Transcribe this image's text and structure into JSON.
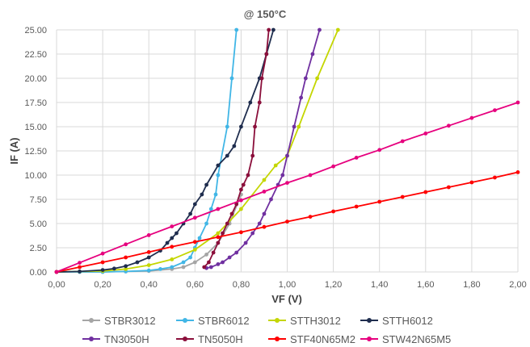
{
  "chart_data": {
    "type": "line",
    "title": "@ 150°C",
    "xlabel": "VF (V)",
    "ylabel": "IF (A)",
    "xlim": [
      0,
      2.0
    ],
    "ylim": [
      0,
      25
    ],
    "x_ticks": [
      "0,00",
      "0,20",
      "0,40",
      "0,60",
      "0,80",
      "1,00",
      "1,20",
      "1,40",
      "1,60",
      "1,80",
      "2,00"
    ],
    "y_ticks": [
      "0.00",
      "2.50",
      "5.00",
      "7.50",
      "10.00",
      "12.50",
      "15.00",
      "17.50",
      "20.00",
      "22.50",
      "25.00"
    ],
    "grid": true,
    "legend_position": "bottom",
    "series": [
      {
        "name": "STBR3012",
        "color": "#a5a5a5",
        "points": [
          [
            0.1,
            0
          ],
          [
            0.2,
            0
          ],
          [
            0.3,
            0.05
          ],
          [
            0.4,
            0.1
          ],
          [
            0.5,
            0.3
          ],
          [
            0.55,
            0.5
          ],
          [
            0.6,
            1.0
          ],
          [
            0.65,
            1.8
          ],
          [
            0.7,
            3.0
          ],
          [
            0.75,
            5.0
          ],
          [
            0.8,
            8.0
          ]
        ]
      },
      {
        "name": "STBR6012",
        "color": "#41b6e6",
        "points": [
          [
            0.0,
            0
          ],
          [
            0.1,
            0
          ],
          [
            0.2,
            0
          ],
          [
            0.3,
            0.05
          ],
          [
            0.4,
            0.15
          ],
          [
            0.45,
            0.3
          ],
          [
            0.5,
            0.5
          ],
          [
            0.55,
            1.0
          ],
          [
            0.58,
            1.5
          ],
          [
            0.6,
            2.5
          ],
          [
            0.62,
            3.5
          ],
          [
            0.65,
            5.0
          ],
          [
            0.67,
            6.5
          ],
          [
            0.69,
            8.0
          ],
          [
            0.7,
            10.0
          ],
          [
            0.74,
            15.0
          ],
          [
            0.76,
            20.0
          ],
          [
            0.78,
            25.0
          ]
        ]
      },
      {
        "name": "STTH3012",
        "color": "#c4d600",
        "points": [
          [
            0.0,
            0
          ],
          [
            0.1,
            0.05
          ],
          [
            0.2,
            0.1
          ],
          [
            0.3,
            0.3
          ],
          [
            0.4,
            0.7
          ],
          [
            0.5,
            1.3
          ],
          [
            0.6,
            2.3
          ],
          [
            0.7,
            4.0
          ],
          [
            0.8,
            6.5
          ],
          [
            0.9,
            9.5
          ],
          [
            0.95,
            11.0
          ],
          [
            1.0,
            12.0
          ],
          [
            1.05,
            15.0
          ],
          [
            1.13,
            20.0
          ],
          [
            1.22,
            25.0
          ]
        ]
      },
      {
        "name": "STTH6012",
        "color": "#1f2d4e",
        "points": [
          [
            0.0,
            0
          ],
          [
            0.1,
            0.05
          ],
          [
            0.2,
            0.2
          ],
          [
            0.25,
            0.35
          ],
          [
            0.3,
            0.6
          ],
          [
            0.35,
            1.0
          ],
          [
            0.4,
            1.5
          ],
          [
            0.45,
            2.2
          ],
          [
            0.48,
            3.0
          ],
          [
            0.5,
            3.5
          ],
          [
            0.52,
            4.0
          ],
          [
            0.55,
            5.0
          ],
          [
            0.58,
            6.0
          ],
          [
            0.6,
            7.0
          ],
          [
            0.63,
            8.0
          ],
          [
            0.65,
            9.0
          ],
          [
            0.7,
            11.0
          ],
          [
            0.74,
            12.0
          ],
          [
            0.77,
            13.0
          ],
          [
            0.8,
            15.0
          ],
          [
            0.84,
            17.5
          ],
          [
            0.88,
            20.0
          ],
          [
            0.91,
            22.5
          ],
          [
            0.94,
            25.0
          ]
        ]
      },
      {
        "name": "TN3050H",
        "color": "#7030a0",
        "points": [
          [
            0.65,
            0.4
          ],
          [
            0.67,
            0.5
          ],
          [
            0.7,
            0.8
          ],
          [
            0.72,
            1.0
          ],
          [
            0.75,
            1.5
          ],
          [
            0.78,
            2.0
          ],
          [
            0.82,
            3.0
          ],
          [
            0.85,
            4.0
          ],
          [
            0.88,
            5.0
          ],
          [
            0.9,
            6.0
          ],
          [
            0.93,
            7.5
          ],
          [
            0.96,
            9.0
          ],
          [
            0.98,
            10.0
          ],
          [
            1.0,
            12.0
          ],
          [
            1.03,
            15.0
          ],
          [
            1.06,
            18.0
          ],
          [
            1.08,
            20.0
          ],
          [
            1.11,
            22.5
          ],
          [
            1.14,
            25.0
          ]
        ]
      },
      {
        "name": "TN5050H",
        "color": "#8b0f3b",
        "points": [
          [
            0.64,
            0.5
          ],
          [
            0.66,
            1.0
          ],
          [
            0.68,
            2.0
          ],
          [
            0.7,
            3.0
          ],
          [
            0.72,
            4.0
          ],
          [
            0.74,
            5.0
          ],
          [
            0.76,
            6.0
          ],
          [
            0.78,
            7.0
          ],
          [
            0.8,
            8.5
          ],
          [
            0.81,
            9.0
          ],
          [
            0.83,
            10.0
          ],
          [
            0.85,
            12.0
          ],
          [
            0.86,
            15.0
          ],
          [
            0.88,
            17.5
          ],
          [
            0.89,
            20.0
          ],
          [
            0.91,
            22.5
          ],
          [
            0.92,
            25.0
          ]
        ]
      },
      {
        "name": "STF40N65M2",
        "color": "#ff0000",
        "points": [
          [
            0.0,
            0
          ],
          [
            0.1,
            0.5
          ],
          [
            0.2,
            1.0
          ],
          [
            0.3,
            1.5
          ],
          [
            0.4,
            2.05
          ],
          [
            0.5,
            2.6
          ],
          [
            0.6,
            3.1
          ],
          [
            0.7,
            3.6
          ],
          [
            0.8,
            4.1
          ],
          [
            0.9,
            4.65
          ],
          [
            1.0,
            5.2
          ],
          [
            1.1,
            5.7
          ],
          [
            1.2,
            6.25
          ],
          [
            1.3,
            6.75
          ],
          [
            1.4,
            7.25
          ],
          [
            1.5,
            7.75
          ],
          [
            1.6,
            8.25
          ],
          [
            1.7,
            8.75
          ],
          [
            1.8,
            9.25
          ],
          [
            1.9,
            9.75
          ],
          [
            2.0,
            10.3
          ]
        ]
      },
      {
        "name": "STW42N65M5",
        "color": "#e6007e",
        "points": [
          [
            0.0,
            0
          ],
          [
            0.1,
            0.95
          ],
          [
            0.2,
            1.9
          ],
          [
            0.3,
            2.85
          ],
          [
            0.4,
            3.8
          ],
          [
            0.5,
            4.7
          ],
          [
            0.6,
            5.6
          ],
          [
            0.7,
            6.5
          ],
          [
            0.8,
            7.4
          ],
          [
            0.9,
            8.3
          ],
          [
            1.0,
            9.2
          ],
          [
            1.1,
            10.0
          ],
          [
            1.2,
            10.9
          ],
          [
            1.3,
            11.8
          ],
          [
            1.4,
            12.6
          ],
          [
            1.5,
            13.5
          ],
          [
            1.6,
            14.3
          ],
          [
            1.7,
            15.1
          ],
          [
            1.8,
            15.9
          ],
          [
            1.9,
            16.7
          ],
          [
            2.0,
            17.5
          ]
        ]
      }
    ]
  }
}
